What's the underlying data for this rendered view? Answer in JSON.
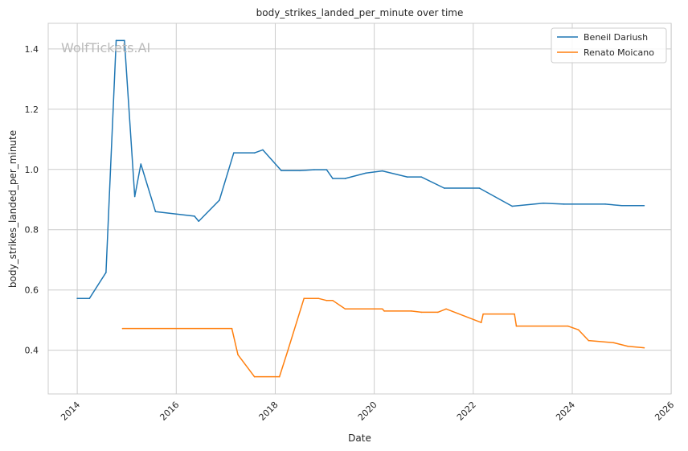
{
  "chart_data": {
    "type": "line",
    "title": "body_strikes_landed_per_minute over time",
    "xlabel": "Date",
    "ylabel": "body_strikes_landed_per_minute",
    "watermark": "WolfTickets.AI",
    "grid": true,
    "legend_position": "top-right",
    "xlim": [
      "2013-06-01",
      "2025-12-31"
    ],
    "ylim": [
      0.255,
      1.485
    ],
    "x_ticks": [
      "2014",
      "2016",
      "2018",
      "2020",
      "2022",
      "2024",
      "2026"
    ],
    "y_ticks": [
      "0.4",
      "0.6",
      "0.8",
      "1.0",
      "1.2",
      "1.4"
    ],
    "series": [
      {
        "name": "Beneil Dariush",
        "color": "#1f77b4",
        "points": [
          [
            "2014-01-01",
            0.572
          ],
          [
            "2014-04-01",
            0.572
          ],
          [
            "2014-08-01",
            0.658
          ],
          [
            "2014-10-15",
            1.428
          ],
          [
            "2014-12-15",
            1.428
          ],
          [
            "2015-03-01",
            0.91
          ],
          [
            "2015-04-15",
            1.018
          ],
          [
            "2015-08-01",
            0.86
          ],
          [
            "2016-05-15",
            0.845
          ],
          [
            "2016-06-15",
            0.828
          ],
          [
            "2016-11-15",
            0.898
          ],
          [
            "2017-03-01",
            1.055
          ],
          [
            "2017-08-01",
            1.055
          ],
          [
            "2017-10-01",
            1.065
          ],
          [
            "2018-02-15",
            0.996
          ],
          [
            "2018-07-01",
            0.996
          ],
          [
            "2018-10-15",
            0.999
          ],
          [
            "2019-01-15",
            0.999
          ],
          [
            "2019-03-01",
            0.97
          ],
          [
            "2019-06-01",
            0.97
          ],
          [
            "2019-11-01",
            0.988
          ],
          [
            "2020-03-01",
            0.995
          ],
          [
            "2020-09-01",
            0.975
          ],
          [
            "2020-12-15",
            0.975
          ],
          [
            "2021-06-01",
            0.938
          ],
          [
            "2022-02-15",
            0.938
          ],
          [
            "2022-10-15",
            0.878
          ],
          [
            "2023-06-01",
            0.888
          ],
          [
            "2023-11-01",
            0.885
          ],
          [
            "2024-09-01",
            0.885
          ],
          [
            "2025-01-01",
            0.88
          ],
          [
            "2025-06-15",
            0.88
          ]
        ]
      },
      {
        "name": "Renato Moicano",
        "color": "#ff7f0e",
        "points": [
          [
            "2014-12-01",
            0.472
          ],
          [
            "2017-02-15",
            0.472
          ],
          [
            "2017-04-01",
            0.385
          ],
          [
            "2017-08-01",
            0.312
          ],
          [
            "2018-02-01",
            0.312
          ],
          [
            "2018-04-01",
            0.395
          ],
          [
            "2018-08-01",
            0.572
          ],
          [
            "2018-11-15",
            0.572
          ],
          [
            "2019-01-15",
            0.565
          ],
          [
            "2019-03-01",
            0.565
          ],
          [
            "2019-06-01",
            0.537
          ],
          [
            "2020-03-01",
            0.537
          ],
          [
            "2020-03-15",
            0.53
          ],
          [
            "2020-10-01",
            0.53
          ],
          [
            "2020-12-15",
            0.526
          ],
          [
            "2021-04-15",
            0.526
          ],
          [
            "2021-06-15",
            0.537
          ],
          [
            "2022-03-01",
            0.492
          ],
          [
            "2022-03-15",
            0.52
          ],
          [
            "2022-11-01",
            0.52
          ],
          [
            "2022-11-15",
            0.48
          ],
          [
            "2023-12-01",
            0.48
          ],
          [
            "2024-02-15",
            0.468
          ],
          [
            "2024-05-01",
            0.432
          ],
          [
            "2024-11-01",
            0.425
          ],
          [
            "2025-02-15",
            0.413
          ],
          [
            "2025-06-15",
            0.408
          ]
        ]
      }
    ]
  }
}
